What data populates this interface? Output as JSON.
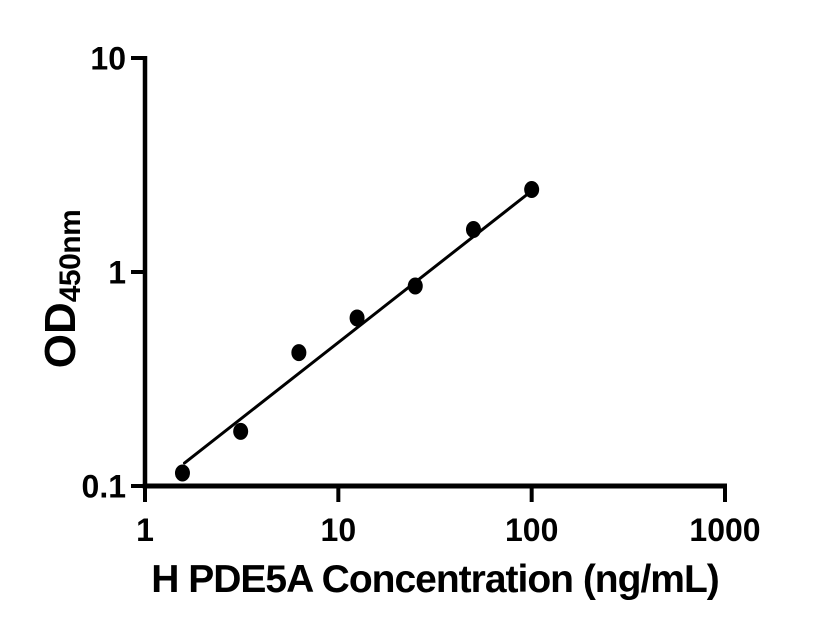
{
  "figure": {
    "background": "#ffffff",
    "axis_color": "#000000",
    "marker_color": "#000000",
    "trend_color": "#000000"
  },
  "chart_data": {
    "type": "scatter",
    "title": "",
    "xlabel": "H PDE5A Concentration (ng/mL)",
    "ylabel_main": "OD",
    "ylabel_sub": "450nm",
    "x_scale": "log",
    "y_scale": "log",
    "xlim": [
      1,
      1000
    ],
    "ylim": [
      0.1,
      10
    ],
    "x_ticks": [
      1,
      10,
      100,
      1000
    ],
    "x_tick_labels": [
      "1",
      "10",
      "100",
      "1000"
    ],
    "y_ticks": [
      0.1,
      1,
      10
    ],
    "y_tick_labels": [
      "0.1",
      "1",
      "10"
    ],
    "grid": false,
    "legend": null,
    "series": [
      {
        "name": "standard-curve-points",
        "x": [
          1.5625,
          3.125,
          6.25,
          12.5,
          25,
          50,
          100
        ],
        "y": [
          0.115,
          0.18,
          0.42,
          0.61,
          0.86,
          1.58,
          2.43
        ]
      }
    ],
    "trend_line": {
      "type": "power-fit",
      "x": [
        1.6,
        101
      ],
      "y": [
        0.128,
        2.41
      ]
    }
  }
}
